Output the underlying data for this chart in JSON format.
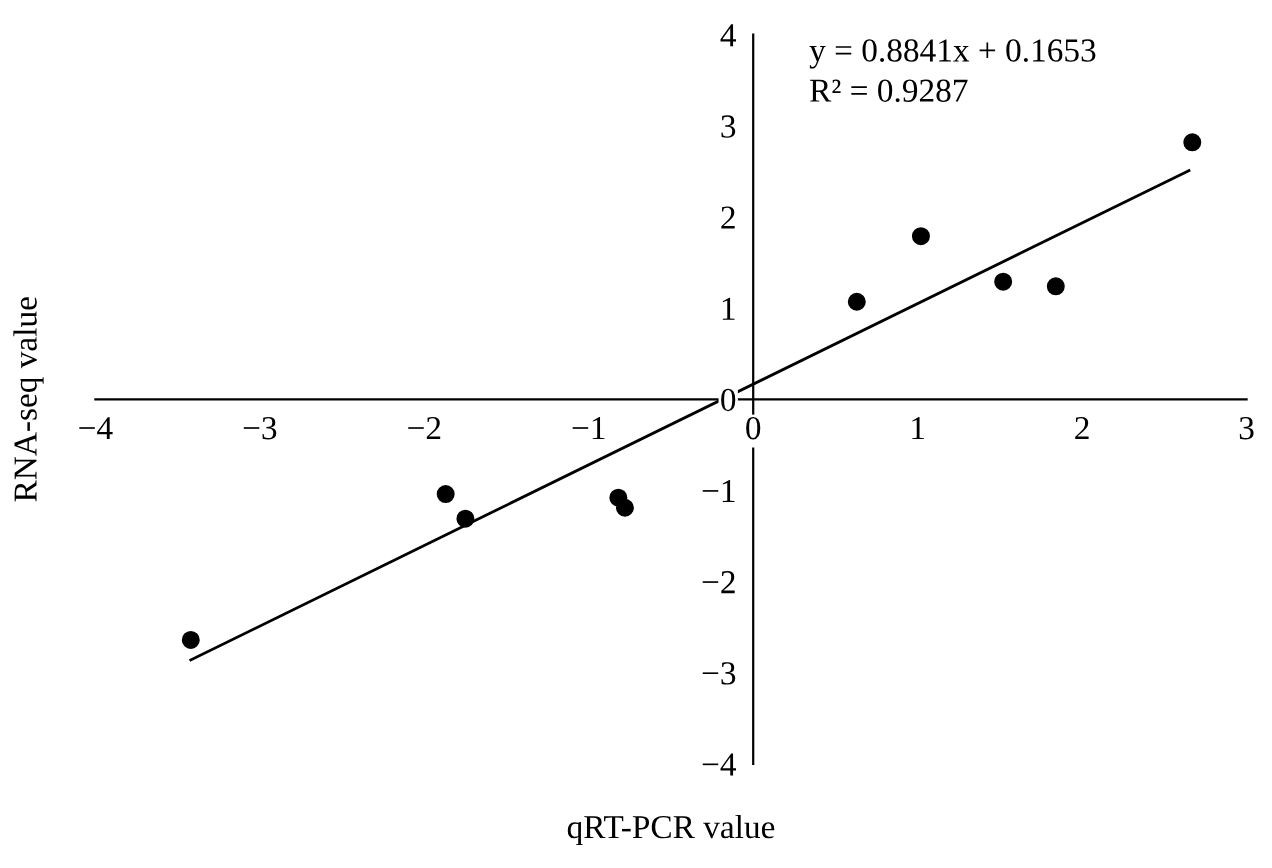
{
  "chart_data": {
    "type": "scatter",
    "xlabel": "qRT-PCR value",
    "ylabel": "RNA-seq value",
    "xlim": [
      -4,
      3
    ],
    "ylim": [
      -4,
      4
    ],
    "xticks": [
      -4,
      -3,
      -2,
      -1,
      0,
      1,
      2,
      3
    ],
    "yticks": [
      -4,
      -3,
      -2,
      -1,
      0,
      1,
      2,
      3,
      4
    ],
    "grid": false,
    "legend": false,
    "marker": "circle",
    "annotations": [
      "y = 0.8841x + 0.1653",
      "R² = 0.9287"
    ],
    "series": [
      {
        "color": "#000000",
        "x": [
          -3.42,
          -1.87,
          -1.75,
          -0.82,
          -0.78,
          0.63,
          1.02,
          1.52,
          1.84,
          2.67
        ],
        "values": [
          -2.64,
          -1.04,
          -1.31,
          -1.08,
          -1.19,
          1.07,
          1.79,
          1.29,
          1.24,
          2.82
        ]
      },
      {
        "type": "line",
        "color": "#000000",
        "marker": "none",
        "line_style": "solid",
        "x": [
          -3.42,
          2.65
        ],
        "values": [
          -2.86,
          2.51
        ]
      }
    ]
  }
}
